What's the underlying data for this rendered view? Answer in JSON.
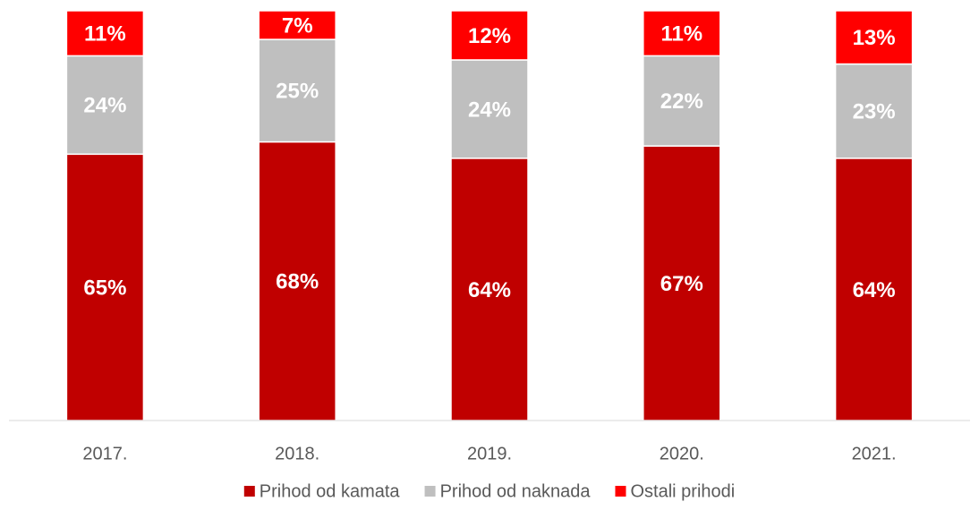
{
  "chart_data": {
    "type": "stacked_bar",
    "categories": [
      "2017.",
      "2018.",
      "2019.",
      "2020.",
      "2021."
    ],
    "series": [
      {
        "name": "Prihod od kamata",
        "color": "#c00000",
        "values": [
          65,
          68,
          64,
          67,
          64
        ],
        "value_labels": [
          "65%",
          "68%",
          "64%",
          "67%",
          "64%"
        ]
      },
      {
        "name": "Prihod od naknada",
        "color": "#bfbfbf",
        "values": [
          24,
          25,
          24,
          22,
          23
        ],
        "value_labels": [
          "24%",
          "25%",
          "24%",
          "22%",
          "23%"
        ]
      },
      {
        "name": "Ostali prihodi",
        "color": "#ff0000",
        "values": [
          11,
          7,
          12,
          11,
          13
        ],
        "value_labels": [
          "11%",
          "7%",
          "12%",
          "11%",
          "13%"
        ]
      }
    ],
    "ylim": [
      0,
      100
    ],
    "legend": "bottom"
  }
}
